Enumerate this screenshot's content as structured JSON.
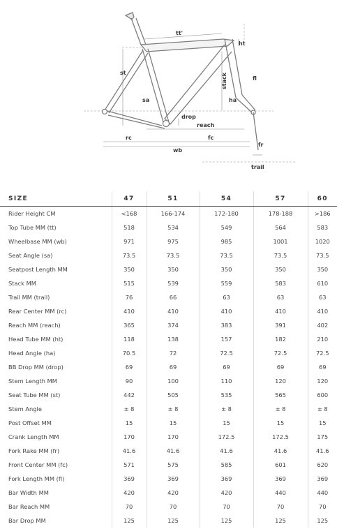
{
  "diagram": {
    "labels": {
      "tt": "tt'",
      "ht": "ht",
      "st": "st",
      "stack": "stack",
      "fl": "fl",
      "sa": "sa",
      "ha": "ha",
      "drop": "drop",
      "reach": "reach",
      "rc": "rc",
      "fc": "fc",
      "wb": "wb",
      "fr": "fr",
      "trail": "trail"
    }
  },
  "table": {
    "header": {
      "size_label": "SIZE",
      "sizes": [
        "47",
        "51",
        "54",
        "57",
        "60"
      ]
    },
    "rows": [
      {
        "label": "Rider Height CM",
        "values": [
          "<168",
          "166-174",
          "172-180",
          "178-188",
          ">186"
        ]
      },
      {
        "label": "Top Tube MM (tt)",
        "values": [
          "518",
          "534",
          "549",
          "564",
          "583"
        ]
      },
      {
        "label": "Wheelbase MM (wb)",
        "values": [
          "971",
          "975",
          "985",
          "1001",
          "1020"
        ]
      },
      {
        "label": "Seat Angle (sa)",
        "values": [
          "73.5",
          "73.5",
          "73.5",
          "73.5",
          "73.5"
        ]
      },
      {
        "label": "Seatpost Length MM",
        "values": [
          "350",
          "350",
          "350",
          "350",
          "350"
        ]
      },
      {
        "label": "Stack MM",
        "values": [
          "515",
          "539",
          "559",
          "583",
          "610"
        ]
      },
      {
        "label": "Trail MM (trail)",
        "values": [
          "76",
          "66",
          "63",
          "63",
          "63"
        ]
      },
      {
        "label": "Rear Center MM (rc)",
        "values": [
          "410",
          "410",
          "410",
          "410",
          "410"
        ]
      },
      {
        "label": "Reach MM (reach)",
        "values": [
          "365",
          "374",
          "383",
          "391",
          "402"
        ]
      },
      {
        "label": "Head Tube MM (ht)",
        "values": [
          "118",
          "138",
          "157",
          "182",
          "210"
        ]
      },
      {
        "label": "Head Angle (ha)",
        "values": [
          "70.5",
          "72",
          "72.5",
          "72.5",
          "72.5"
        ]
      },
      {
        "label": "BB Drop MM (drop)",
        "values": [
          "69",
          "69",
          "69",
          "69",
          "69"
        ]
      },
      {
        "label": "Stem Length MM",
        "values": [
          "90",
          "100",
          "110",
          "120",
          "120"
        ]
      },
      {
        "label": "Seat Tube MM (st)",
        "values": [
          "442",
          "505",
          "535",
          "565",
          "600"
        ]
      },
      {
        "label": "Stem Angle",
        "values": [
          "± 8",
          "± 8",
          "± 8",
          "± 8",
          "± 8"
        ]
      },
      {
        "label": "Post Offset MM",
        "values": [
          "15",
          "15",
          "15",
          "15",
          "15"
        ]
      },
      {
        "label": "Crank Length MM",
        "values": [
          "170",
          "170",
          "172.5",
          "172.5",
          "175"
        ]
      },
      {
        "label": "Fork Rake MM (fr)",
        "values": [
          "41.6",
          "41.6",
          "41.6",
          "41.6",
          "41.6"
        ]
      },
      {
        "label": "Front Center MM (fc)",
        "values": [
          "571",
          "575",
          "585",
          "601",
          "620"
        ]
      },
      {
        "label": "Fork Length MM (fl)",
        "values": [
          "369",
          "369",
          "369",
          "369",
          "369"
        ]
      },
      {
        "label": "Bar Width MM",
        "values": [
          "420",
          "420",
          "420",
          "440",
          "440"
        ]
      },
      {
        "label": "Bar Reach MM",
        "values": [
          "70",
          "70",
          "70",
          "70",
          "70"
        ]
      },
      {
        "label": "Bar Drop MM",
        "values": [
          "125",
          "125",
          "125",
          "125",
          "125"
        ]
      }
    ]
  }
}
